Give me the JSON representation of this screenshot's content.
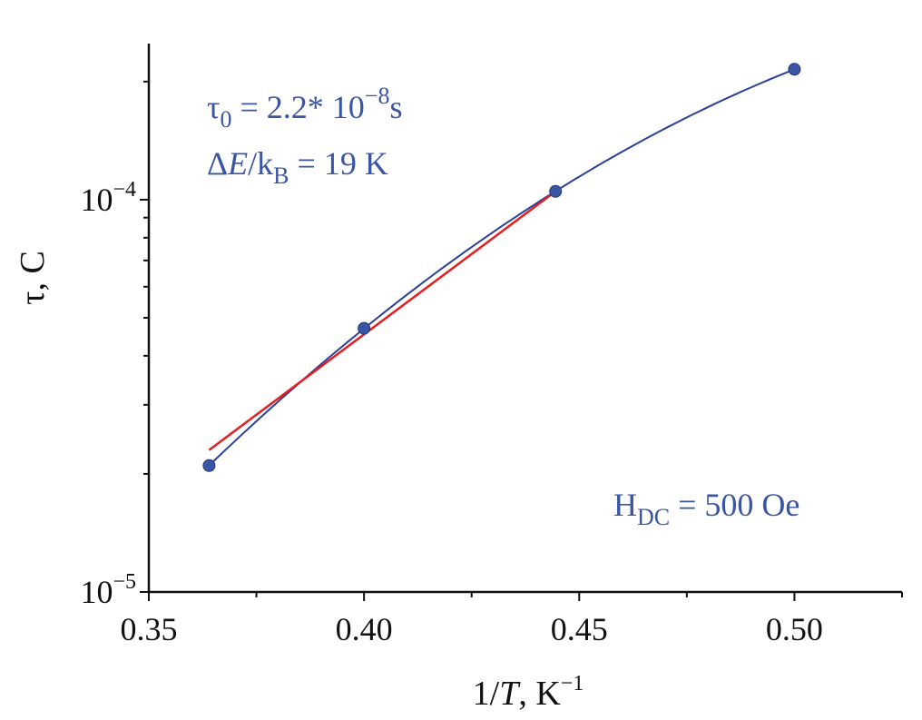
{
  "chart_data": {
    "type": "scatter",
    "xlabel": {
      "prefix": "1/",
      "var": "T",
      "unit": ", K",
      "unit_sup": "−1"
    },
    "ylabel": "τ, C",
    "xlim": [
      0.35,
      0.525
    ],
    "ylim": [
      1e-05,
      0.00025
    ],
    "y_scale": "log",
    "x_ticks": [
      {
        "value": 0.35,
        "label": "0.35"
      },
      {
        "value": 0.4,
        "label": "0.40"
      },
      {
        "value": 0.45,
        "label": "0.45"
      },
      {
        "value": 0.5,
        "label": "0.50"
      }
    ],
    "x_minor_ticks": [
      0.375,
      0.425,
      0.475,
      0.525
    ],
    "y_ticks": [
      {
        "value": 1e-05,
        "base": "10",
        "exp": "−5"
      },
      {
        "value": 0.0001,
        "base": "10",
        "exp": "−4"
      }
    ],
    "series": [
      {
        "kind": "points",
        "color": "#3a55a4",
        "x": [
          0.364,
          0.4,
          0.4445,
          0.5
        ],
        "y": [
          2.1e-05,
          4.7e-05,
          0.000105,
          0.000215
        ]
      },
      {
        "kind": "smooth-curve",
        "color": "#2a3f9a",
        "x": [
          0.364,
          0.4,
          0.4445,
          0.5
        ],
        "y": [
          2.1e-05,
          4.7e-05,
          0.000105,
          0.000215
        ]
      },
      {
        "kind": "linear-fit",
        "color": "#e41e1e",
        "x": [
          0.364,
          0.4445
        ],
        "y": [
          2.3e-05,
          0.000105
        ]
      }
    ],
    "annotations": {
      "tau0": {
        "symbol": "τ",
        "sub": "0",
        "text": " = 2.2* 10",
        "exp": "−8",
        "unit": "s"
      },
      "energy": {
        "delta": "Δ",
        "var": "E",
        "slash": "/k",
        "sub": "B",
        "text": " = 19 K"
      },
      "field": {
        "main": "H",
        "sub": "DC",
        "text": " = 500 Oe"
      }
    },
    "colors": {
      "points": "#3a55a4",
      "curve": "#2a3f9a",
      "fit": "#e41e1e",
      "annotation": "#3a55a4",
      "axes": "#111111"
    },
    "grid": false
  }
}
